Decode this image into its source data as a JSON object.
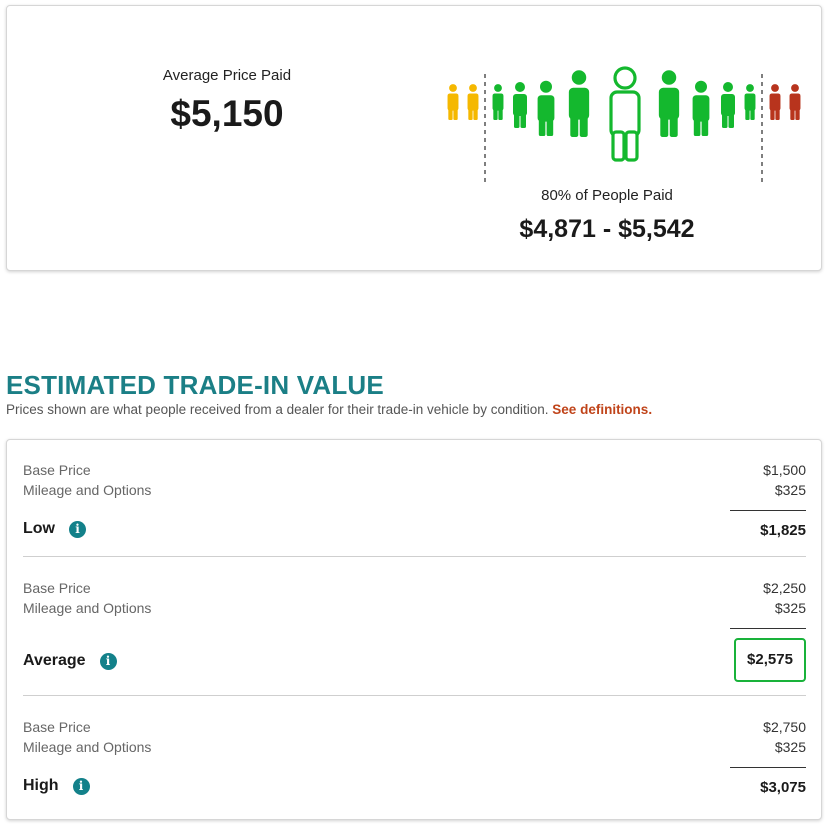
{
  "price_paid": {
    "avg_label": "Average Price Paid",
    "avg_value": "$5,150",
    "range_label": "80% of People Paid",
    "range_value": "$4,871 - $5,542",
    "colors": {
      "low": "#f5b800",
      "mid": "#14b82e",
      "high": "#b8341d",
      "dash": "#555555"
    }
  },
  "trade_in": {
    "title": "ESTIMATED TRADE-IN VALUE",
    "subtitle": "Prices shown are what people received from a dealer for their trade-in vehicle by condition.",
    "definitions_link": "See definitions.",
    "tiers": [
      {
        "base_label": "Base Price",
        "base_value": "$1,500",
        "options_label": "Mileage and Options",
        "options_value": "$325",
        "total_label": "Low",
        "total_value": "$1,825"
      },
      {
        "base_label": "Base Price",
        "base_value": "$2,250",
        "options_label": "Mileage and Options",
        "options_value": "$325",
        "total_label": "Average",
        "total_value": "$2,575"
      },
      {
        "base_label": "Base Price",
        "base_value": "$2,750",
        "options_label": "Mileage and Options",
        "options_value": "$325",
        "total_label": "High",
        "total_value": "$3,075"
      }
    ],
    "accent_color": "#1b7f86",
    "link_color": "#c0441a",
    "highlight_color": "#19b23a"
  },
  "icons": {
    "info": "i"
  }
}
